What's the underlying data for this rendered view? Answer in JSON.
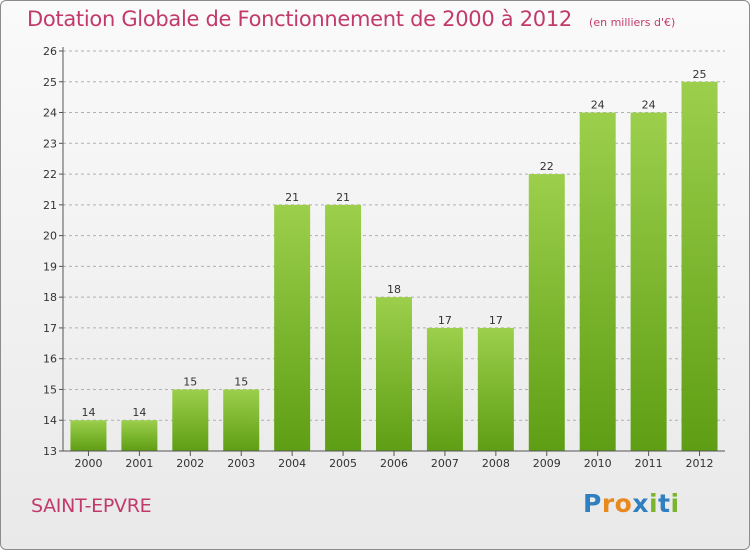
{
  "title": "Dotation Globale de Fonctionnement de 2000 à 2012",
  "subtitle": "(en milliers d'€)",
  "commune": "SAINT-EPVRE",
  "logo": {
    "text": "Proxiti",
    "letters": [
      {
        "char": "P",
        "color": "#2f7fc1"
      },
      {
        "char": "r",
        "color": "#e8891d"
      },
      {
        "char": "o",
        "color": "#e8891d"
      },
      {
        "char": "x",
        "color": "#2f7fc1"
      },
      {
        "char": "i",
        "color": "#7ab52e"
      },
      {
        "char": "t",
        "color": "#2f7fc1"
      },
      {
        "char": "i",
        "color": "#7ab52e"
      }
    ]
  },
  "colors": {
    "title": "#c23a6b",
    "bar_top": "#9ccf4c",
    "bar_bottom": "#5e9e14",
    "grid": "#b0b0b0",
    "axis": "#555555"
  },
  "chart_data": {
    "type": "bar",
    "title": "Dotation Globale de Fonctionnement de 2000 à 2012",
    "subtitle": "(en milliers d'€)",
    "categories": [
      "2000",
      "2001",
      "2002",
      "2003",
      "2004",
      "2005",
      "2006",
      "2007",
      "2008",
      "2009",
      "2010",
      "2011",
      "2012"
    ],
    "values": [
      14,
      14,
      15,
      15,
      21,
      21,
      18,
      17,
      17,
      22,
      24,
      24,
      25
    ],
    "data_labels": [
      "14",
      "14",
      "15",
      "15",
      "21",
      "21",
      "18",
      "17",
      "17",
      "22",
      "24",
      "24",
      "25"
    ],
    "ylim": [
      13,
      26
    ],
    "yticks": [
      13,
      14,
      15,
      16,
      17,
      18,
      19,
      20,
      21,
      22,
      23,
      24,
      25,
      26
    ],
    "grid": "horizontal dashed",
    "legend": "none"
  }
}
